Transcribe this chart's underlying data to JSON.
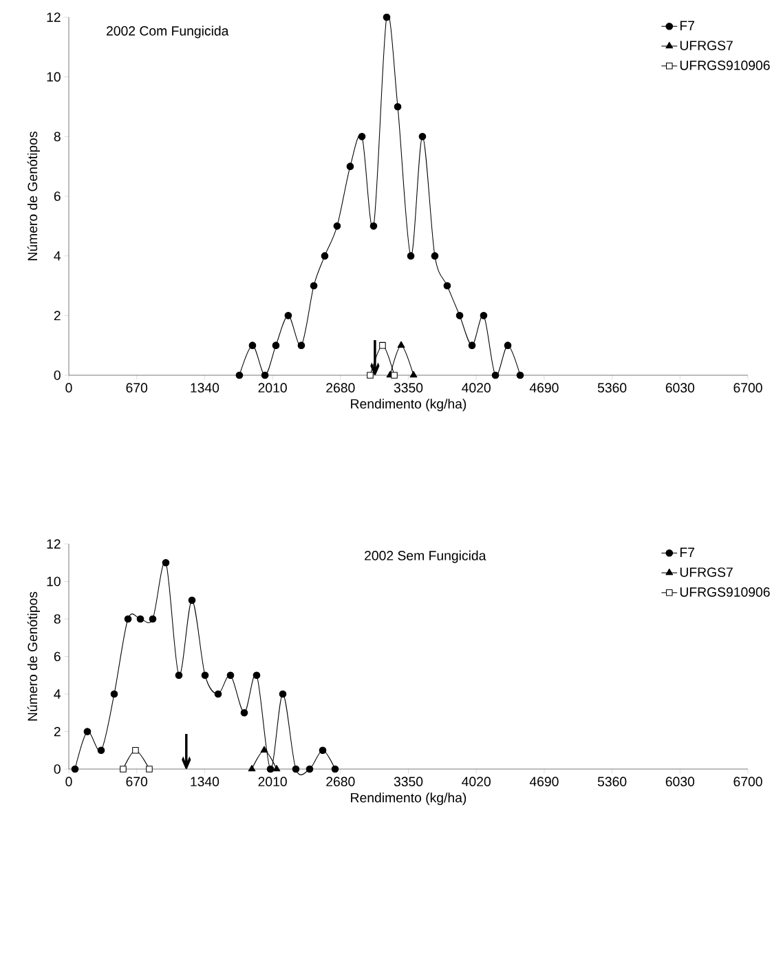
{
  "chart_data": [
    {
      "type": "line",
      "title": "2002 Com Fungicida",
      "xlabel": "Rendimento (kg/ha)",
      "ylabel": "Número de Genótipos",
      "xlim": [
        0,
        6700
      ],
      "xticks": [
        0,
        670,
        1340,
        2010,
        2680,
        3350,
        4020,
        4690,
        5360,
        6030,
        6700
      ],
      "ylim": [
        0,
        12
      ],
      "yticks": [
        0,
        2,
        4,
        6,
        8,
        10,
        12
      ],
      "legend": "top right",
      "series": [
        {
          "name": "F7",
          "color": "#000000",
          "marker": "circle",
          "x": [
            1683,
            1812,
            1935,
            2043,
            2165,
            2294,
            2417,
            2525,
            2647,
            2776,
            2892,
            3007,
            3136,
            3245,
            3374,
            3489,
            3611,
            3733,
            3856,
            3978,
            4093,
            4209,
            4331,
            4453
          ],
          "values": [
            0,
            1,
            0,
            1,
            2,
            1,
            3,
            4,
            5,
            7,
            8,
            5,
            12,
            9,
            4,
            8,
            4,
            3,
            2,
            1,
            2,
            0,
            1,
            0
          ]
        },
        {
          "name": "UFRGS7",
          "color": "#000000",
          "marker": "triangle",
          "x": [
            3170,
            3279,
            3401
          ],
          "values": [
            0,
            1,
            0
          ]
        },
        {
          "name": "UFRGS910906",
          "color": "#000000",
          "marker": "square",
          "x": [
            2973,
            3095,
            3211
          ],
          "values": [
            0,
            1,
            0
          ]
        }
      ],
      "annotations": [
        {
          "text": "↓",
          "x": 3020,
          "y": 0
        }
      ]
    },
    {
      "type": "line",
      "title": "2002 Sem Fungicida",
      "xlabel": "Rendimento (kg/ha)",
      "ylabel": "Número de Genótipos",
      "xlim": [
        0,
        6700
      ],
      "xticks": [
        0,
        670,
        1340,
        2010,
        2680,
        3350,
        4020,
        4690,
        5360,
        6030,
        6700
      ],
      "ylim": [
        0,
        12
      ],
      "yticks": [
        0,
        2,
        4,
        6,
        8,
        10,
        12
      ],
      "legend": "top right",
      "series": [
        {
          "name": "F7",
          "color": "#000000",
          "marker": "circle",
          "x": [
            61,
            183,
            319,
            448,
            584,
            706,
            828,
            957,
            1086,
            1215,
            1344,
            1473,
            1595,
            1731,
            1853,
            1989,
            2111,
            2240,
            2376,
            2505,
            2627
          ],
          "values": [
            0,
            2,
            1,
            4,
            8,
            8,
            8,
            11,
            5,
            9,
            5,
            4,
            5,
            3,
            5,
            0,
            4,
            0,
            0,
            1,
            0
          ]
        },
        {
          "name": "UFRGS7",
          "color": "#000000",
          "marker": "triangle",
          "x": [
            1806,
            1928,
            2050
          ],
          "values": [
            0,
            1,
            0
          ]
        },
        {
          "name": "UFRGS910906",
          "color": "#000000",
          "marker": "square",
          "x": [
            536,
            658,
            794
          ],
          "values": [
            0,
            1,
            0
          ]
        }
      ],
      "annotations": [
        "↓"
      ]
    }
  ]
}
